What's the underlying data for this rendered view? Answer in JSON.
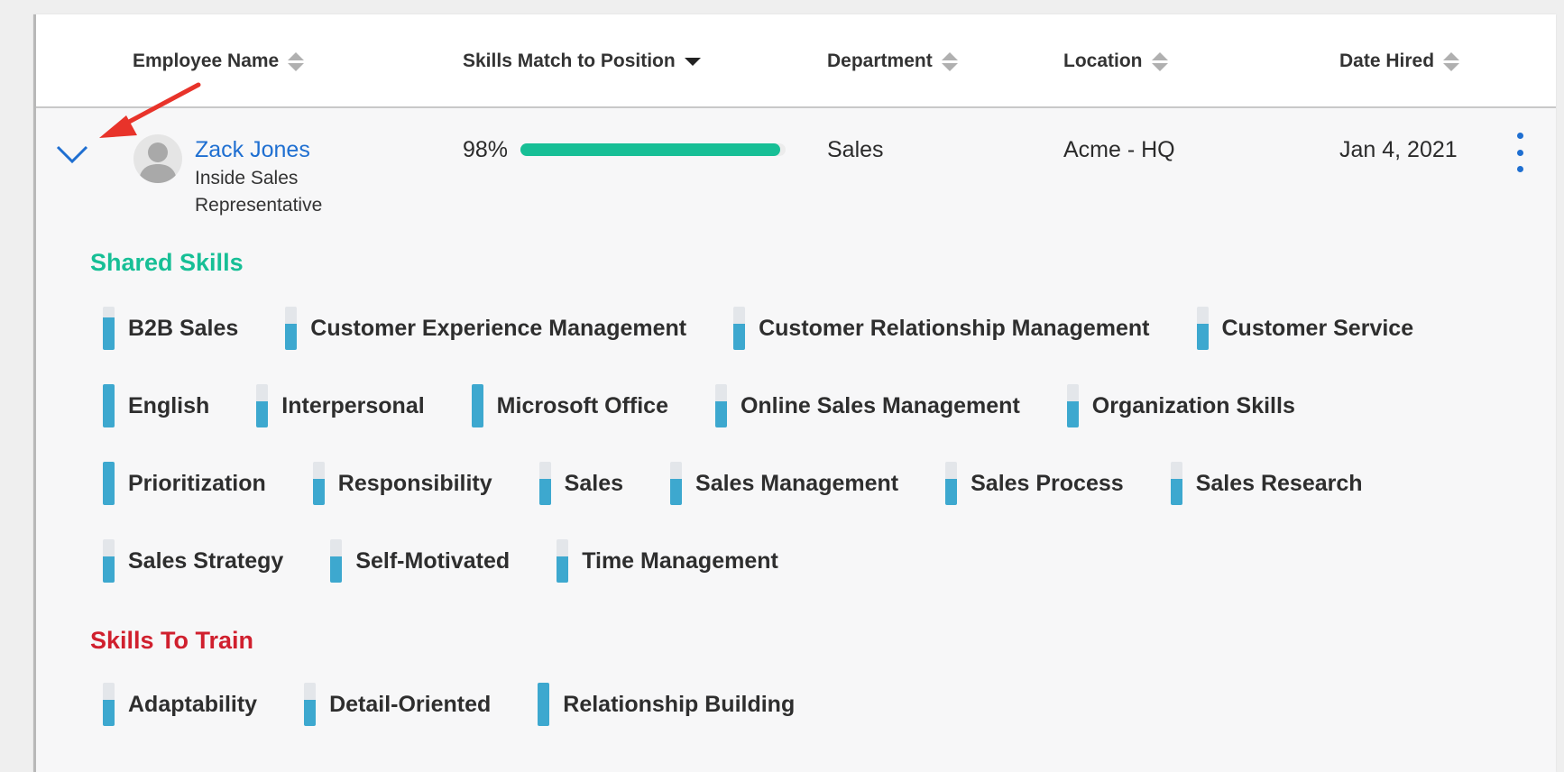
{
  "columns": [
    {
      "label": "Employee Name",
      "sort": "both"
    },
    {
      "label": "Skills Match to Position",
      "sort": "desc"
    },
    {
      "label": "Department",
      "sort": "both"
    },
    {
      "label": "Location",
      "sort": "both"
    },
    {
      "label": "Date Hired",
      "sort": "both"
    }
  ],
  "employee": {
    "name": "Zack Jones",
    "title_line1": "Inside Sales",
    "title_line2": "Representative",
    "match_label": "98%",
    "match_value": 98,
    "department": "Sales",
    "location": "Acme - HQ",
    "date_hired": "Jan 4, 2021"
  },
  "shared_skills_title": "Shared Skills",
  "shared_skills": [
    {
      "name": "B2B Sales",
      "level": 0.75
    },
    {
      "name": "Customer Experience Management",
      "level": 0.6
    },
    {
      "name": "Customer Relationship Management",
      "level": 0.6
    },
    {
      "name": "Customer Service",
      "level": 0.6
    },
    {
      "name": "English",
      "level": 1
    },
    {
      "name": "Interpersonal",
      "level": 0.6
    },
    {
      "name": "Microsoft Office",
      "level": 1
    },
    {
      "name": "Online Sales Management",
      "level": 0.6
    },
    {
      "name": "Organization Skills",
      "level": 0.6
    },
    {
      "name": "Prioritization",
      "level": 1
    },
    {
      "name": "Responsibility",
      "level": 0.6
    },
    {
      "name": "Sales",
      "level": 0.6
    },
    {
      "name": "Sales Management",
      "level": 0.6
    },
    {
      "name": "Sales Process",
      "level": 0.6
    },
    {
      "name": "Sales Research",
      "level": 0.6
    },
    {
      "name": "Sales Strategy",
      "level": 0.6
    },
    {
      "name": "Self-Motivated",
      "level": 0.6
    },
    {
      "name": "Time Management",
      "level": 0.6
    }
  ],
  "train_skills_title": "Skills To Train",
  "train_skills": [
    {
      "name": "Adaptability",
      "level": 0.6
    },
    {
      "name": "Detail-Oriented",
      "level": 0.6
    },
    {
      "name": "Relationship Building",
      "level": 1
    }
  ],
  "colors": {
    "accent": "#1f6fd1",
    "shared": "#17bf96",
    "train": "#d0202e",
    "skill_fill": "#3da8cf",
    "bar": "#17bf96",
    "annotation_arrow": "#e8332a"
  },
  "icons": {
    "expand": "chevron-down-icon",
    "menu": "kebab-menu-icon",
    "sort": "sort-arrows-icon",
    "avatar": "user-avatar-icon"
  }
}
